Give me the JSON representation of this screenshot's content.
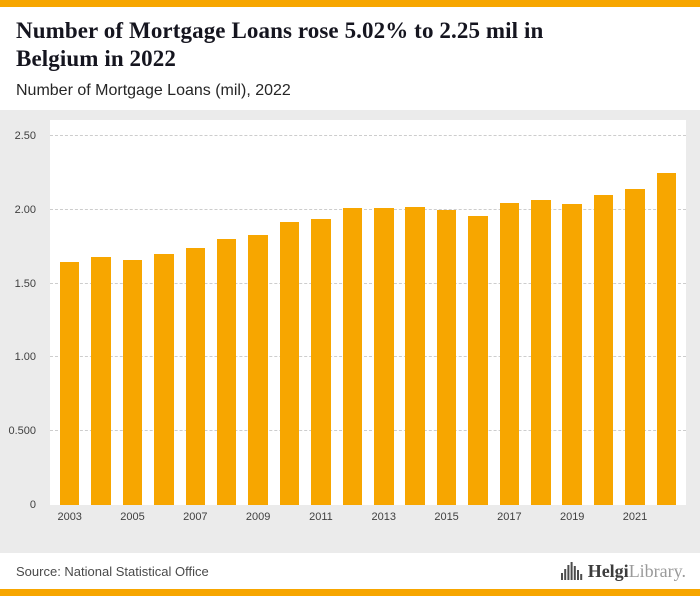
{
  "accent_color": "#F7A600",
  "header": {
    "title_line1": "Number of Mortgage Loans rose 5.02% to 2.25 mil in",
    "title_line2": "Belgium in 2022",
    "subtitle": "Number of Mortgage Loans (mil), 2022"
  },
  "chart_data": {
    "type": "bar",
    "title": "Number of Mortgage Loans rose 5.02% to 2.25 mil in Belgium in 2022",
    "subtitle": "Number of Mortgage Loans (mil), 2022",
    "categories": [
      2003,
      2004,
      2005,
      2006,
      2007,
      2008,
      2009,
      2010,
      2011,
      2012,
      2013,
      2014,
      2015,
      2016,
      2017,
      2018,
      2019,
      2020,
      2021,
      2022
    ],
    "values": [
      1.65,
      1.68,
      1.66,
      1.7,
      1.74,
      1.8,
      1.83,
      1.92,
      1.94,
      2.01,
      2.01,
      2.02,
      2.0,
      1.96,
      2.05,
      2.07,
      2.04,
      2.1,
      2.14,
      2.25
    ],
    "bar_color": "#F7A600",
    "background_color": "#EBEBEB",
    "plot_background": "#FFFFFF",
    "ylim": [
      0,
      2.5
    ],
    "yticks": [
      0,
      0.5,
      1.0,
      1.5,
      2.0,
      2.5
    ],
    "ytick_labels": [
      "0",
      "0.500",
      "1.00",
      "1.50",
      "2.00",
      "2.50"
    ],
    "xtick_labels": [
      "2003",
      "2005",
      "2007",
      "2009",
      "2011",
      "2013",
      "2015",
      "2017",
      "2019",
      "2021"
    ],
    "grid": "horizontal-dashed",
    "legend": "none"
  },
  "footer": {
    "source": "Source: National Statistical Office",
    "logo_brand_bold": "Helgi",
    "logo_brand_light": "Library",
    "logo_suffix": "."
  }
}
